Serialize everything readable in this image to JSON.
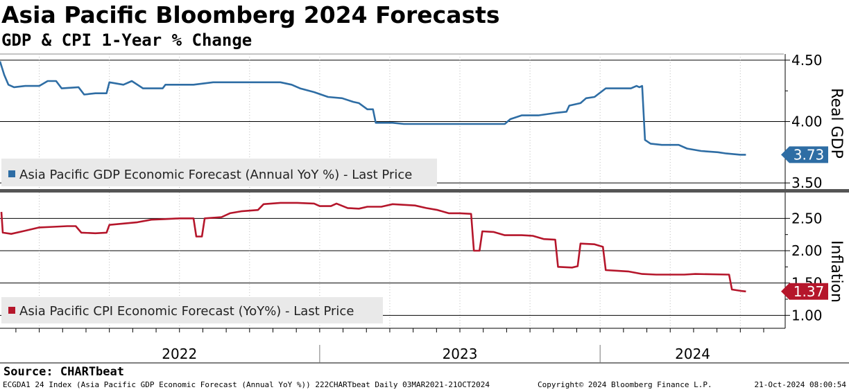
{
  "header": {
    "title": "Asia Pacific Bloomberg 2024 Forecasts",
    "subtitle": "GDP & CPI 1-Year % Change"
  },
  "footer": {
    "source": "Source: CHARTbeat",
    "left": "ECGDA1 24 Index (Asia Pacific GDP Economic Forecast (Annual YoY %)) 222CHARTbeat  Daily 03MAR2021-21OCT2024",
    "middle": "Copyright© 2024 Bloomberg Finance L.P.",
    "right": "21-Oct-2024 08:00:54"
  },
  "colors": {
    "gdp": "#2e6da4",
    "cpi": "#b5162b",
    "grid": "#000000",
    "separator": "#555555"
  },
  "chart_data": [
    {
      "type": "line",
      "panel": "top",
      "axis_title": "Real GDP",
      "legend": "Asia Pacific GDP Economic Forecast (Annual YoY %) - Last Price",
      "last_value_label": "3.73",
      "ylim": [
        3.45,
        4.55
      ],
      "yticks": [
        3.5,
        4.0,
        4.5
      ],
      "ytick_labels": [
        "3.50",
        "4.00",
        "4.50"
      ],
      "series": [
        {
          "name": "Asia Pacific GDP Economic Forecast (Annual YoY %)",
          "points": [
            [
              2021.86,
              4.49
            ],
            [
              2021.875,
              4.38
            ],
            [
              2021.89,
              4.3
            ],
            [
              2021.91,
              4.28
            ],
            [
              2021.95,
              4.29
            ],
            [
              2022.0,
              4.29
            ],
            [
              2022.03,
              4.33
            ],
            [
              2022.06,
              4.33
            ],
            [
              2022.08,
              4.27
            ],
            [
              2022.14,
              4.28
            ],
            [
              2022.16,
              4.22
            ],
            [
              2022.2,
              4.23
            ],
            [
              2022.24,
              4.23
            ],
            [
              2022.25,
              4.32
            ],
            [
              2022.3,
              4.3
            ],
            [
              2022.33,
              4.33
            ],
            [
              2022.37,
              4.27
            ],
            [
              2022.44,
              4.27
            ],
            [
              2022.45,
              4.3
            ],
            [
              2022.52,
              4.3
            ],
            [
              2022.55,
              4.3
            ],
            [
              2022.62,
              4.32
            ],
            [
              2022.7,
              4.32
            ],
            [
              2022.8,
              4.32
            ],
            [
              2022.86,
              4.32
            ],
            [
              2022.9,
              4.3
            ],
            [
              2022.93,
              4.27
            ],
            [
              2022.98,
              4.24
            ],
            [
              2023.03,
              4.2
            ],
            [
              2023.08,
              4.19
            ],
            [
              2023.12,
              4.16
            ],
            [
              2023.14,
              4.15
            ],
            [
              2023.17,
              4.1
            ],
            [
              2023.19,
              4.1
            ],
            [
              2023.2,
              3.99
            ],
            [
              2023.26,
              3.99
            ],
            [
              2023.3,
              3.98
            ],
            [
              2023.4,
              3.98
            ],
            [
              2023.52,
              3.98
            ],
            [
              2023.6,
              3.98
            ],
            [
              2023.66,
              3.98
            ],
            [
              2023.68,
              4.02
            ],
            [
              2023.72,
              4.05
            ],
            [
              2023.78,
              4.05
            ],
            [
              2023.84,
              4.07
            ],
            [
              2023.88,
              4.08
            ],
            [
              2023.89,
              4.13
            ],
            [
              2023.93,
              4.15
            ],
            [
              2023.95,
              4.19
            ],
            [
              2023.98,
              4.2
            ],
            [
              2024.02,
              4.27
            ],
            [
              2024.06,
              4.27
            ],
            [
              2024.11,
              4.27
            ],
            [
              2024.13,
              4.29
            ],
            [
              2024.14,
              4.28
            ],
            [
              2024.15,
              4.29
            ],
            [
              2024.16,
              3.85
            ],
            [
              2024.18,
              3.82
            ],
            [
              2024.22,
              3.81
            ],
            [
              2024.28,
              3.81
            ],
            [
              2024.31,
              3.78
            ],
            [
              2024.36,
              3.76
            ],
            [
              2024.42,
              3.75
            ],
            [
              2024.45,
              3.74
            ],
            [
              2024.5,
              3.73
            ],
            [
              2024.52,
              3.73
            ]
          ]
        }
      ]
    },
    {
      "type": "line",
      "panel": "bottom",
      "axis_title": "Inflation",
      "legend": "Asia Pacific CPI Economic Forecast (YoY%) - Last Price",
      "last_value_label": "1.37",
      "ylim": [
        0.8,
        2.9
      ],
      "yticks": [
        1.0,
        1.5,
        2.0,
        2.5
      ],
      "ytick_labels": [
        "1.00",
        "1.50",
        "2.00",
        "2.50"
      ],
      "xlim": [
        2021.86,
        2024.66
      ],
      "xticks_years": [
        2022,
        2023,
        2024
      ],
      "xtick_labels": [
        "2022",
        "2023",
        "2024"
      ],
      "series": [
        {
          "name": "Asia Pacific CPI Economic Forecast (YoY%)",
          "points": [
            [
              2021.865,
              2.6
            ],
            [
              2021.87,
              2.28
            ],
            [
              2021.9,
              2.26
            ],
            [
              2021.95,
              2.31
            ],
            [
              2022.0,
              2.36
            ],
            [
              2022.05,
              2.37
            ],
            [
              2022.1,
              2.38
            ],
            [
              2022.13,
              2.38
            ],
            [
              2022.15,
              2.28
            ],
            [
              2022.2,
              2.27
            ],
            [
              2022.24,
              2.28
            ],
            [
              2022.25,
              2.4
            ],
            [
              2022.3,
              2.42
            ],
            [
              2022.35,
              2.44
            ],
            [
              2022.4,
              2.48
            ],
            [
              2022.45,
              2.49
            ],
            [
              2022.5,
              2.5
            ],
            [
              2022.55,
              2.5
            ],
            [
              2022.56,
              2.22
            ],
            [
              2022.58,
              2.22
            ],
            [
              2022.59,
              2.5
            ],
            [
              2022.65,
              2.52
            ],
            [
              2022.68,
              2.58
            ],
            [
              2022.72,
              2.61
            ],
            [
              2022.78,
              2.63
            ],
            [
              2022.8,
              2.72
            ],
            [
              2022.86,
              2.74
            ],
            [
              2022.92,
              2.74
            ],
            [
              2022.98,
              2.73
            ],
            [
              2023.0,
              2.69
            ],
            [
              2023.04,
              2.69
            ],
            [
              2023.06,
              2.73
            ],
            [
              2023.1,
              2.66
            ],
            [
              2023.14,
              2.65
            ],
            [
              2023.17,
              2.68
            ],
            [
              2023.22,
              2.68
            ],
            [
              2023.26,
              2.72
            ],
            [
              2023.34,
              2.7
            ],
            [
              2023.38,
              2.66
            ],
            [
              2023.42,
              2.63
            ],
            [
              2023.46,
              2.58
            ],
            [
              2023.5,
              2.58
            ],
            [
              2023.54,
              2.57
            ],
            [
              2023.55,
              2.0
            ],
            [
              2023.57,
              2.0
            ],
            [
              2023.58,
              2.3
            ],
            [
              2023.62,
              2.29
            ],
            [
              2023.66,
              2.24
            ],
            [
              2023.72,
              2.24
            ],
            [
              2023.76,
              2.23
            ],
            [
              2023.8,
              2.18
            ],
            [
              2023.84,
              2.17
            ],
            [
              2023.85,
              1.75
            ],
            [
              2023.9,
              1.74
            ],
            [
              2023.92,
              1.76
            ],
            [
              2023.93,
              2.11
            ],
            [
              2023.98,
              2.1
            ],
            [
              2024.01,
              2.06
            ],
            [
              2024.02,
              1.7
            ],
            [
              2024.06,
              1.69
            ],
            [
              2024.1,
              1.68
            ],
            [
              2024.15,
              1.64
            ],
            [
              2024.2,
              1.63
            ],
            [
              2024.3,
              1.63
            ],
            [
              2024.34,
              1.64
            ],
            [
              2024.46,
              1.63
            ],
            [
              2024.47,
              1.4
            ],
            [
              2024.5,
              1.38
            ],
            [
              2024.52,
              1.37
            ]
          ]
        }
      ]
    }
  ]
}
